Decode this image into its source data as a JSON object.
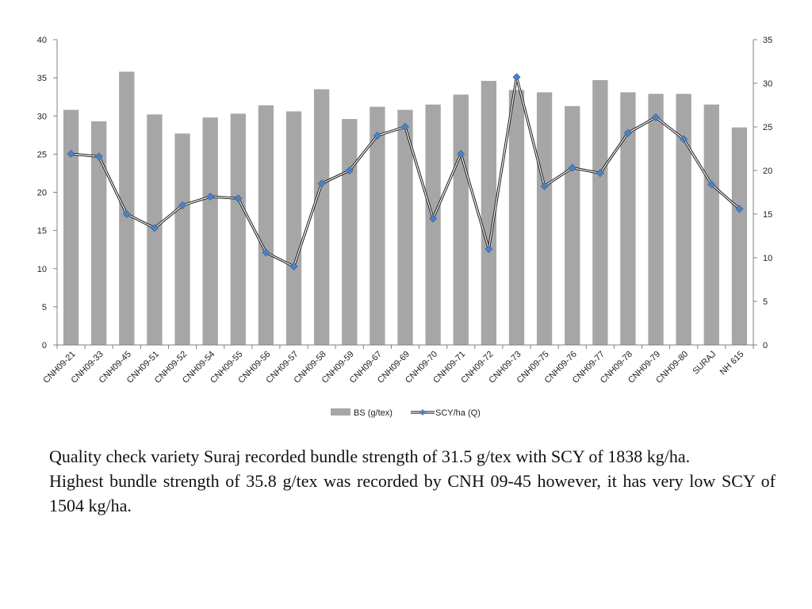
{
  "chart_data": {
    "type": "bar",
    "categories": [
      "CNH09-21",
      "CNH09-33",
      "CNH09-45",
      "CNH09-51",
      "CNH09-52",
      "CNH09-54",
      "CNH09-55",
      "CNH09-56",
      "CNH09-57",
      "CNH09-58",
      "CNH09-59",
      "CNH09-67",
      "CNH09-69",
      "CNH09-70",
      "CNH09-71",
      "CNH09-72",
      "CNH09-73",
      "CNH09-75",
      "CNH09-76",
      "CNH09-77",
      "CNH09-78",
      "CNH09-79",
      "CNH09-80",
      "SURAJ",
      "NH 615"
    ],
    "series": [
      {
        "name": "BS (g/tex)",
        "type": "bar",
        "axis": "left",
        "color": "#a6a6a6",
        "values": [
          30.8,
          29.3,
          35.8,
          30.2,
          27.7,
          29.8,
          30.3,
          31.4,
          30.6,
          33.5,
          29.6,
          31.2,
          30.8,
          31.5,
          32.8,
          34.6,
          33.4,
          33.1,
          31.3,
          34.7,
          33.1,
          32.9,
          32.9,
          31.5,
          28.5
        ]
      },
      {
        "name": "SCY/ha (Q)",
        "type": "line",
        "axis": "right",
        "color": "#4f81bd",
        "values": [
          21.9,
          21.6,
          15.0,
          13.4,
          16.0,
          17.0,
          16.8,
          10.6,
          9.0,
          18.5,
          20.0,
          24.0,
          25.0,
          14.5,
          21.9,
          11.0,
          30.7,
          18.2,
          20.3,
          19.7,
          24.3,
          26.1,
          23.6,
          18.4,
          15.6
        ]
      }
    ],
    "y_left": {
      "min": 0,
      "max": 40,
      "step": 5,
      "ticks": [
        "0",
        "5",
        "10",
        "15",
        "20",
        "25",
        "30",
        "35",
        "40"
      ]
    },
    "y_right": {
      "min": 0,
      "max": 35,
      "step": 5,
      "ticks": [
        "0",
        "5",
        "10",
        "15",
        "20",
        "25",
        "30",
        "35"
      ]
    },
    "grid": false,
    "legend": "bottom"
  },
  "notes": [
    "Quality check variety Suraj recorded bundle strength of 31.5 g/tex with SCY of 1838 kg/ha.",
    "Highest bundle strength of 35.8 g/tex was recorded by CNH 09-45  however, it has very low SCY of 1504 kg/ha."
  ]
}
